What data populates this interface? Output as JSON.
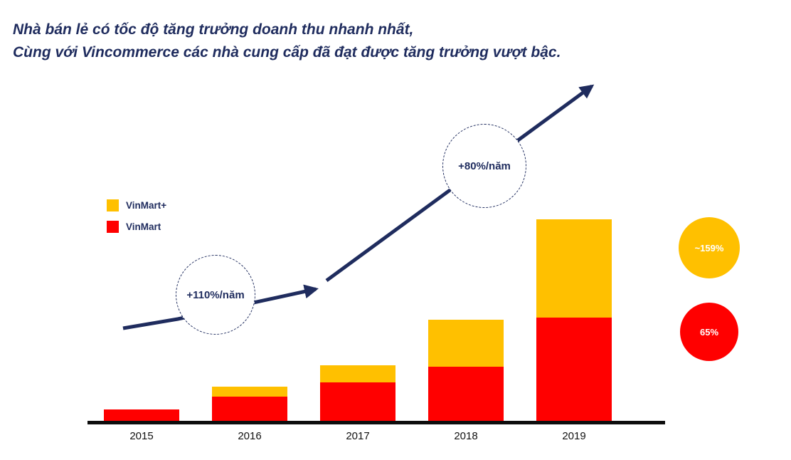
{
  "title": {
    "line1": "Nhà bán lẻ có tốc độ tăng trưởng doanh thu nhanh nhất,",
    "line2": "Cùng với Vincommerce các nhà cung cấp đã đạt được tăng trưởng vượt bậc."
  },
  "colors": {
    "navy": "#1F2C5E",
    "yellow": "#FFC000",
    "red": "#FF0000",
    "axis": "#0D0D0D"
  },
  "legend": [
    {
      "label": "VinMart+",
      "color": "#FFC000"
    },
    {
      "label": "VinMart",
      "color": "#FF0000"
    }
  ],
  "annotations": {
    "first": "+110%/năm",
    "second": "+80%/năm"
  },
  "badges": [
    {
      "label": "~159%",
      "color": "#FFC000"
    },
    {
      "label": "65%",
      "color": "#FF0000"
    }
  ],
  "chart_data": {
    "type": "bar",
    "stacked": true,
    "title": "",
    "xlabel": "",
    "ylabel": "",
    "y_axis_visible": false,
    "grid": false,
    "legend_position": "upper-left",
    "categories": [
      "2015",
      "2016",
      "2017",
      "2018",
      "2019"
    ],
    "series": [
      {
        "name": "VinMart",
        "color": "#FF0000",
        "values": [
          17,
          35,
          55,
          76,
          145
        ]
      },
      {
        "name": "VinMart+",
        "color": "#FFC000",
        "values": [
          0,
          14,
          23,
          66,
          137
        ]
      }
    ],
    "values_note": "relative heights estimated from image; no numeric y-axis shown",
    "growth_annotations": [
      "+110%/năm",
      "+80%/năm"
    ],
    "side_badges": [
      "~159%",
      "65%"
    ]
  }
}
